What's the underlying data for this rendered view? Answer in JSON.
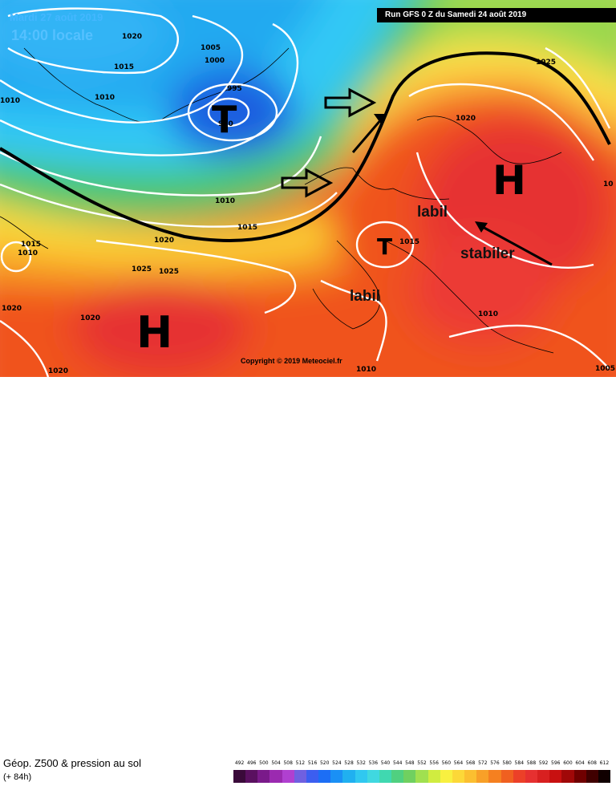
{
  "header": {
    "date_line": "Mardi 27 août 2019",
    "time_line": "14:00 locale",
    "run_info": "Run GFS 0 Z du Samedi 24 août 2019"
  },
  "map": {
    "pressure_labels": [
      "1020",
      "1015",
      "1010",
      "1005",
      "1000",
      "995",
      "990",
      "1010",
      "1010",
      "1015",
      "1020",
      "1015",
      "1010",
      "1025",
      "1025",
      "1020",
      "1020",
      "1020",
      "1010",
      "1015",
      "1010",
      "1020",
      "1025",
      "1005",
      "10"
    ],
    "systems": {
      "low_main": "T",
      "high_east": "H",
      "high_west": "H",
      "low_iberia": "T"
    },
    "annotations": {
      "labil_1": "labil",
      "labil_2": "labil",
      "stabiler": "stabiler"
    },
    "copyright": "Copyright © 2019 Meteociel.fr",
    "colors": {
      "deep_blue": "#1c5fe0",
      "cyan": "#33c8f5",
      "green": "#52c96b",
      "yellow": "#fde24a",
      "orange": "#f59126",
      "red": "#ee3b2c",
      "ridge_line": "#000000",
      "isobar": "#ffffff"
    }
  },
  "footer": {
    "caption": "Géop. Z500 & pression au sol",
    "subcaption": "(+ 84h)",
    "legend_ticks": [
      "492",
      "496",
      "500",
      "504",
      "508",
      "512",
      "516",
      "520",
      "524",
      "528",
      "532",
      "536",
      "540",
      "544",
      "548",
      "552",
      "556",
      "560",
      "564",
      "568",
      "572",
      "576",
      "580",
      "584",
      "588",
      "592",
      "596",
      "600",
      "604",
      "608",
      "612"
    ],
    "legend_colors": [
      "#3a0a3a",
      "#5a1060",
      "#7a1a8a",
      "#9b2ab0",
      "#b040d0",
      "#7060e0",
      "#3c5ef0",
      "#1c6ef5",
      "#1a90f5",
      "#20b0f0",
      "#30c8f0",
      "#40d8e0",
      "#40d8b0",
      "#50d080",
      "#70d060",
      "#a0e050",
      "#d0ec40",
      "#f8f040",
      "#fcd838",
      "#fbbf30",
      "#f8a028",
      "#f58020",
      "#f06020",
      "#ec4028",
      "#e63030",
      "#d82020",
      "#c81010",
      "#a00808",
      "#700000",
      "#400000",
      "#100000"
    ]
  }
}
